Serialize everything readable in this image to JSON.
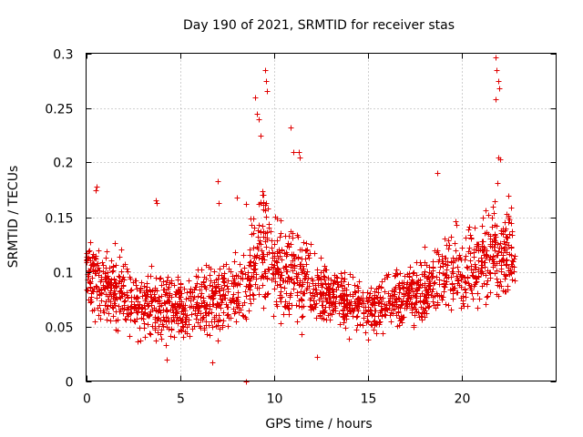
{
  "chart_data": {
    "type": "scatter",
    "title": "Day 190 of 2021, SRMTID for receiver stas",
    "xlabel": "GPS time / hours",
    "ylabel": "SRMTID / TECUs",
    "xlim": [
      0,
      25
    ],
    "ylim": [
      0,
      0.3
    ],
    "xticks": [
      0,
      5,
      10,
      15,
      20
    ],
    "xtick_labels": [
      "0",
      "5",
      "10",
      "15",
      "20"
    ],
    "yticks": [
      0,
      0.05,
      0.1,
      0.15,
      0.2,
      0.25,
      0.3
    ],
    "ytick_labels": [
      "0",
      "0.05",
      "0.1",
      "0.15",
      "0.2",
      "0.25",
      "0.3"
    ],
    "grid": true,
    "marker": "+",
    "color": "#e00000",
    "series": [
      {
        "name": "SRMTID",
        "description": "Dense scatter of roughly 2000 epochs between 0 and 22.8 h; baseline ~0.1 at 0 h falling to ~0.06-0.07 at 3-8 h, burst near 9 h and 11 h, minimum ~0.07 near 14-15 h, rising to ~0.12 after 20 h",
        "x": [
          0.0,
          0.3,
          0.6,
          1.0,
          1.5,
          2.0,
          2.5,
          3.0,
          3.5,
          4.0,
          4.5,
          5.0,
          5.5,
          6.0,
          6.5,
          7.0,
          7.5,
          8.0,
          8.5,
          9.0,
          9.3,
          9.6,
          10.0,
          10.5,
          11.0,
          11.5,
          12.0,
          12.5,
          13.0,
          13.5,
          14.0,
          14.5,
          15.0,
          15.5,
          16.0,
          16.5,
          17.0,
          17.5,
          18.0,
          18.5,
          19.0,
          19.5,
          20.0,
          20.5,
          21.0,
          21.5,
          22.0,
          22.5,
          22.8
        ],
        "y": [
          0.1,
          0.1,
          0.095,
          0.09,
          0.085,
          0.08,
          0.075,
          0.07,
          0.068,
          0.068,
          0.068,
          0.066,
          0.068,
          0.07,
          0.072,
          0.075,
          0.078,
          0.08,
          0.085,
          0.11,
          0.13,
          0.12,
          0.105,
          0.1,
          0.1,
          0.095,
          0.085,
          0.08,
          0.078,
          0.075,
          0.072,
          0.07,
          0.068,
          0.07,
          0.072,
          0.075,
          0.08,
          0.083,
          0.086,
          0.09,
          0.095,
          0.1,
          0.1,
          0.105,
          0.11,
          0.115,
          0.12,
          0.118,
          0.115
        ],
        "spread": [
          0.025,
          0.028,
          0.03,
          0.03,
          0.028,
          0.028,
          0.027,
          0.027,
          0.025,
          0.024,
          0.024,
          0.023,
          0.024,
          0.025,
          0.027,
          0.028,
          0.028,
          0.028,
          0.03,
          0.04,
          0.05,
          0.045,
          0.035,
          0.035,
          0.04,
          0.035,
          0.028,
          0.025,
          0.022,
          0.022,
          0.02,
          0.02,
          0.02,
          0.02,
          0.022,
          0.023,
          0.025,
          0.025,
          0.026,
          0.028,
          0.03,
          0.03,
          0.032,
          0.034,
          0.036,
          0.038,
          0.04,
          0.035,
          0.03
        ],
        "count": 2000,
        "outliers": [
          {
            "x": 8.5,
            "y": 0.0
          },
          {
            "x": 9.0,
            "y": 0.26
          },
          {
            "x": 9.1,
            "y": 0.245
          },
          {
            "x": 9.2,
            "y": 0.24
          },
          {
            "x": 9.3,
            "y": 0.225
          },
          {
            "x": 9.5,
            "y": 0.285
          },
          {
            "x": 9.55,
            "y": 0.275
          },
          {
            "x": 9.6,
            "y": 0.265
          },
          {
            "x": 10.9,
            "y": 0.232
          },
          {
            "x": 11.0,
            "y": 0.21
          },
          {
            "x": 11.3,
            "y": 0.21
          },
          {
            "x": 11.35,
            "y": 0.205
          },
          {
            "x": 18.7,
            "y": 0.19
          },
          {
            "x": 21.8,
            "y": 0.296
          },
          {
            "x": 21.85,
            "y": 0.285
          },
          {
            "x": 21.9,
            "y": 0.275
          },
          {
            "x": 21.95,
            "y": 0.268
          },
          {
            "x": 21.8,
            "y": 0.258
          },
          {
            "x": 21.9,
            "y": 0.205
          },
          {
            "x": 22.0,
            "y": 0.203
          },
          {
            "x": 0.5,
            "y": 0.175
          },
          {
            "x": 0.55,
            "y": 0.178
          },
          {
            "x": 3.7,
            "y": 0.165
          },
          {
            "x": 3.75,
            "y": 0.163
          },
          {
            "x": 7.0,
            "y": 0.183
          },
          {
            "x": 7.05,
            "y": 0.163
          },
          {
            "x": 8.0,
            "y": 0.168
          },
          {
            "x": 8.5,
            "y": 0.162
          },
          {
            "x": 4.3,
            "y": 0.02
          },
          {
            "x": 6.7,
            "y": 0.017
          },
          {
            "x": 12.3,
            "y": 0.022
          }
        ]
      }
    ]
  }
}
